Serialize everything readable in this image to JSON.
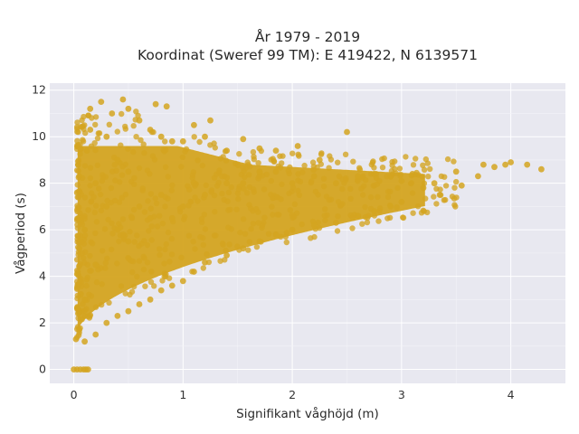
{
  "chart_data": {
    "type": "scatter",
    "title": [
      "År 1979 - 2019",
      "Koordinat (Sweref 99 TM): E 419422, N 6139571"
    ],
    "xlabel": "Signifikant våghöjd (m)",
    "ylabel": "Vågperiod (s)",
    "xlim": [
      -0.22,
      4.5
    ],
    "ylim": [
      -0.6,
      12.3
    ],
    "x_ticks": [
      0,
      1,
      2,
      3,
      4
    ],
    "y_ticks": [
      0,
      2,
      4,
      6,
      8,
      10,
      12
    ],
    "grid": true,
    "legend": "none",
    "marker_color": "#D4A420",
    "plot_background": "#E8E8F0",
    "series": [
      {
        "values": [
          [
            0.0,
            0.0
          ],
          [
            0.03,
            0.0
          ],
          [
            0.06,
            0.0
          ],
          [
            0.09,
            0.0
          ],
          [
            0.11,
            0.0
          ],
          [
            0.13,
            0.0
          ],
          [
            0.02,
            1.3
          ],
          [
            0.05,
            1.7
          ],
          [
            0.04,
            2.4
          ],
          [
            0.06,
            3.2
          ],
          [
            0.03,
            4.1
          ],
          [
            0.05,
            5.2
          ],
          [
            0.04,
            6.5
          ],
          [
            0.03,
            7.6
          ],
          [
            0.05,
            8.3
          ],
          [
            0.04,
            8.8
          ],
          [
            0.1,
            1.2
          ],
          [
            0.1,
            3.0
          ],
          [
            0.1,
            6.0
          ],
          [
            0.12,
            9.4
          ],
          [
            0.15,
            10.3
          ],
          [
            0.15,
            11.2
          ],
          [
            0.2,
            1.5
          ],
          [
            0.2,
            4.5
          ],
          [
            0.2,
            8.0
          ],
          [
            0.25,
            11.5
          ],
          [
            0.3,
            2.0
          ],
          [
            0.3,
            7.0
          ],
          [
            0.3,
            10.0
          ],
          [
            0.35,
            11.0
          ],
          [
            0.4,
            2.3
          ],
          [
            0.4,
            6.0
          ],
          [
            0.4,
            9.0
          ],
          [
            0.45,
            11.6
          ],
          [
            0.5,
            2.5
          ],
          [
            0.5,
            5.5
          ],
          [
            0.5,
            8.5
          ],
          [
            0.5,
            11.2
          ],
          [
            0.6,
            2.8
          ],
          [
            0.6,
            7.0
          ],
          [
            0.6,
            10.7
          ],
          [
            0.7,
            3.0
          ],
          [
            0.7,
            6.5
          ],
          [
            0.7,
            10.3
          ],
          [
            0.75,
            11.4
          ],
          [
            0.8,
            3.4
          ],
          [
            0.8,
            7.5
          ],
          [
            0.8,
            10.0
          ],
          [
            0.85,
            11.3
          ],
          [
            0.9,
            3.6
          ],
          [
            0.9,
            6.5
          ],
          [
            0.9,
            9.8
          ],
          [
            1.0,
            3.8
          ],
          [
            1.0,
            7.0
          ],
          [
            1.0,
            9.8
          ],
          [
            1.1,
            4.2
          ],
          [
            1.1,
            8.0
          ],
          [
            1.1,
            10.5
          ],
          [
            1.2,
            4.6
          ],
          [
            1.2,
            7.5
          ],
          [
            1.2,
            10.0
          ],
          [
            1.25,
            10.7
          ],
          [
            1.4,
            4.9
          ],
          [
            1.4,
            8.0
          ],
          [
            1.4,
            9.4
          ],
          [
            1.55,
            5.2
          ],
          [
            1.55,
            8.0
          ],
          [
            1.55,
            9.9
          ],
          [
            1.7,
            5.5
          ],
          [
            1.7,
            8.5
          ],
          [
            1.7,
            9.5
          ],
          [
            1.85,
            5.8
          ],
          [
            1.85,
            8.5
          ],
          [
            1.85,
            9.4
          ],
          [
            2.0,
            6.0
          ],
          [
            2.0,
            8.0
          ],
          [
            2.05,
            9.6
          ],
          [
            2.2,
            6.2
          ],
          [
            2.2,
            8.3
          ],
          [
            2.25,
            9.0
          ],
          [
            2.4,
            6.3
          ],
          [
            2.4,
            8.0
          ],
          [
            2.5,
            10.2
          ],
          [
            2.6,
            6.6
          ],
          [
            2.6,
            8.3
          ],
          [
            2.75,
            6.8
          ],
          [
            2.75,
            8.4
          ],
          [
            2.9,
            7.0
          ],
          [
            2.9,
            8.3
          ],
          [
            3.0,
            7.2
          ],
          [
            3.0,
            8.1
          ],
          [
            3.1,
            8.4
          ],
          [
            3.2,
            7.8
          ],
          [
            3.3,
            8.0
          ],
          [
            3.35,
            7.5
          ],
          [
            3.5,
            8.5
          ],
          [
            3.55,
            7.9
          ],
          [
            3.7,
            8.3
          ],
          [
            3.75,
            8.8
          ],
          [
            3.85,
            8.7
          ],
          [
            3.95,
            8.8
          ],
          [
            4.0,
            8.9
          ],
          [
            4.15,
            8.8
          ],
          [
            4.28,
            8.6
          ]
        ]
      }
    ]
  }
}
